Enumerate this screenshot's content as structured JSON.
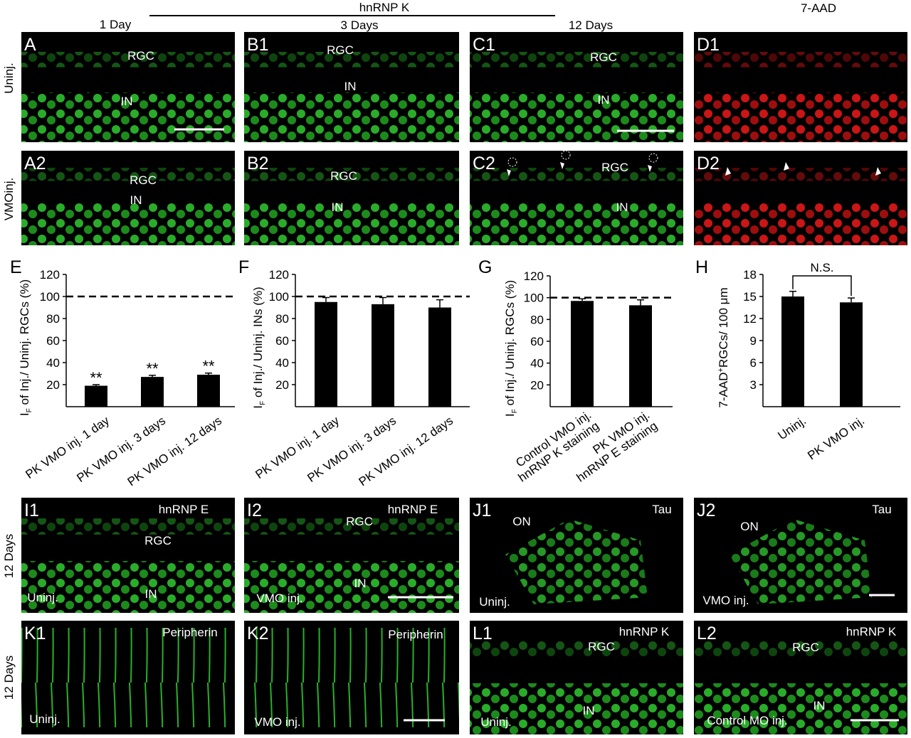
{
  "header": {
    "group_title": "hnRNP K",
    "stain_title": "7-AAD",
    "columns": [
      "1 Day",
      "3 Days",
      "12 Days"
    ],
    "row_labels": [
      "Uninj.",
      "VMOinj.",
      "12 Days",
      "12 Days"
    ]
  },
  "image_panels": [
    {
      "label": "A",
      "texts": [
        "RGC",
        "IN"
      ]
    },
    {
      "label": "B1",
      "texts": [
        "RGC",
        "IN"
      ]
    },
    {
      "label": "C1",
      "texts": [
        "RGC",
        "IN"
      ]
    },
    {
      "label": "D1",
      "texts": []
    },
    {
      "label": "A2",
      "texts": [
        "RGC",
        "IN"
      ]
    },
    {
      "label": "B2",
      "texts": [
        "RGC",
        "IN"
      ]
    },
    {
      "label": "C2",
      "texts": [
        "RGC",
        "IN"
      ]
    },
    {
      "label": "D2",
      "texts": []
    },
    {
      "label": "I1",
      "texts": [
        "hnRNP E",
        "RGC",
        "IN",
        "Uninj."
      ]
    },
    {
      "label": "I2",
      "texts": [
        "hnRNP E",
        "RGC",
        "IN",
        "VMO inj."
      ]
    },
    {
      "label": "J1",
      "texts": [
        "Tau",
        "ON",
        "Uninj."
      ]
    },
    {
      "label": "J2",
      "texts": [
        "Tau",
        "ON",
        "VMO inj."
      ]
    },
    {
      "label": "K1",
      "texts": [
        "Peripherin",
        "Uninj."
      ]
    },
    {
      "label": "K2",
      "texts": [
        "Peripherin",
        "VMO inj."
      ]
    },
    {
      "label": "L1",
      "texts": [
        "hnRNP K",
        "RGC",
        "IN",
        "Uninj."
      ]
    },
    {
      "label": "L2",
      "texts": [
        "hnRNP K",
        "RGC",
        "IN",
        "Control MO inj."
      ]
    }
  ],
  "chart_data": [
    {
      "type": "bar",
      "panel": "E",
      "ylabel_symbol": "I",
      "ylabel_subscript": "F",
      "ylabel": " of Inj./ Uninj. RGCs (%)",
      "categories": [
        [
          "PK VMO inj. 1 day"
        ],
        [
          "PK VMO inj. 3 days"
        ],
        [
          "PK VMO inj. 12 days"
        ]
      ],
      "values": [
        19,
        27,
        29
      ],
      "errors": [
        1,
        1.5,
        1.5
      ],
      "annotations": [
        "**",
        "**",
        "**"
      ],
      "color": "#000000",
      "ylim": [
        0,
        120
      ],
      "yticks": [
        20,
        40,
        60,
        80,
        100,
        120
      ],
      "reference_line": 100
    },
    {
      "type": "bar",
      "panel": "F",
      "ylabel_symbol": "I",
      "ylabel_subscript": "F",
      "ylabel": " of Inj./ Uninj. INs (%)",
      "categories": [
        [
          "PK VMO inj. 1 day"
        ],
        [
          "PK VMO inj. 3 days"
        ],
        [
          "PK VMO inj. 12 days"
        ]
      ],
      "values": [
        95,
        93,
        90
      ],
      "errors": [
        4,
        6,
        7
      ],
      "color": "#000000",
      "ylim": [
        0,
        120
      ],
      "yticks": [
        20,
        40,
        60,
        80,
        100,
        120
      ],
      "reference_line": 100
    },
    {
      "type": "bar",
      "panel": "G",
      "ylabel_symbol": "I",
      "ylabel_subscript": "F",
      "ylabel": " of Inj./ Uninj. RGCs (%)",
      "categories": [
        [
          "Control VMO inj.",
          "hnRNP K staining"
        ],
        [
          "PK VMO inj.",
          "hnRNP E staining"
        ]
      ],
      "values": [
        97,
        93
      ],
      "errors": [
        2,
        5
      ],
      "color": "#000000",
      "ylim": [
        0,
        120
      ],
      "yticks": [
        20,
        40,
        60,
        80,
        100,
        120
      ],
      "reference_line": 100
    },
    {
      "type": "bar",
      "panel": "H",
      "ylabel_prefix": "7-AAD",
      "ylabel_superscript": "+",
      "ylabel": "RGCs/ 100 μm",
      "categories": [
        [
          "Uninj."
        ],
        [
          "PK VMO inj."
        ]
      ],
      "values": [
        15,
        14.2
      ],
      "errors": [
        0.7,
        0.6
      ],
      "bracket_label": "N.S.",
      "color": "#000000",
      "ylim": [
        0,
        18
      ],
      "yticks": [
        3,
        6,
        9,
        12,
        15,
        18
      ]
    }
  ]
}
